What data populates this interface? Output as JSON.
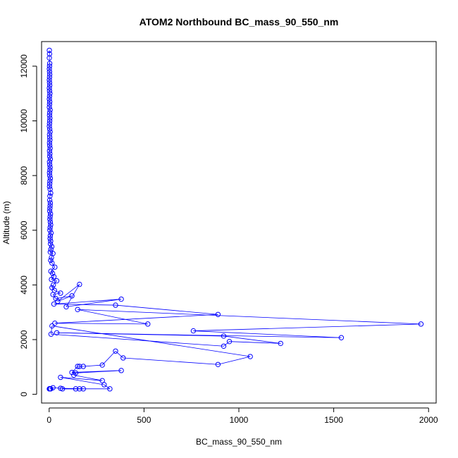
{
  "chart_data": {
    "type": "line",
    "title": "ATOM2 Northbound BC_mass_90_550_nm",
    "xlabel": "BC_mass_90_550_nm",
    "ylabel": "Altitude (m)",
    "xlim": [
      -40,
      2040
    ],
    "ylim": [
      -320,
      12900
    ],
    "x_ticks": [
      0,
      500,
      1000,
      1500,
      2000
    ],
    "y_ticks": [
      0,
      2000,
      4000,
      6000,
      8000,
      10000,
      12000
    ],
    "grid": false,
    "legend": "none",
    "series_color": "#0000ff",
    "marker": "open-circle",
    "series": [
      {
        "x": [
          1,
          2,
          1,
          3,
          2,
          1,
          2,
          3,
          2,
          1,
          2,
          3,
          1,
          2,
          4,
          2,
          1,
          3,
          2,
          1,
          5,
          3,
          2,
          4,
          3,
          2,
          1,
          3,
          5,
          2,
          3,
          4,
          2,
          3,
          5,
          2,
          4,
          3,
          6,
          2,
          3,
          5,
          4,
          2,
          3,
          6,
          4,
          3,
          2,
          5,
          8,
          4,
          3,
          6,
          5,
          4,
          3,
          7,
          5,
          4,
          6,
          8,
          5,
          4,
          10,
          6,
          5,
          8,
          7,
          14,
          9,
          6,
          20,
          12,
          8,
          15,
          30,
          9,
          18,
          25,
          12,
          40,
          22,
          15,
          28,
          60,
          20,
          35,
          120,
          45,
          160,
          90,
          380,
          25,
          350,
          890,
          30,
          520,
          150,
          1960,
          760,
          1540,
          40,
          920,
          1220,
          950,
          920,
          10,
          15,
          1060,
          890,
          390,
          350,
          280,
          180,
          160,
          150,
          120,
          380,
          140,
          130,
          280,
          60,
          290,
          320,
          160,
          140,
          70,
          180,
          60,
          20,
          8,
          5,
          3,
          2,
          1
        ],
        "y": [
          12580,
          12450,
          12300,
          12100,
          12000,
          11900,
          11800,
          11700,
          11600,
          11500,
          11400,
          11300,
          11200,
          11100,
          11000,
          10900,
          10800,
          10700,
          10600,
          10500,
          10400,
          10300,
          10200,
          10100,
          10000,
          9900,
          9800,
          9700,
          9600,
          9500,
          9400,
          9300,
          9200,
          9100,
          9000,
          8900,
          8800,
          8700,
          8600,
          8500,
          8400,
          8300,
          8200,
          8100,
          8000,
          7900,
          7800,
          7700,
          7600,
          7500,
          7360,
          7250,
          7100,
          7000,
          6900,
          6800,
          6700,
          6600,
          6500,
          6400,
          6300,
          6200,
          6100,
          6000,
          5900,
          5800,
          5700,
          5600,
          5500,
          5400,
          5300,
          5200,
          5150,
          5000,
          4900,
          4800,
          4650,
          4500,
          4420,
          4300,
          4200,
          4150,
          4000,
          3900,
          3800,
          3700,
          3650,
          3500,
          3600,
          3400,
          4020,
          3200,
          3480,
          3300,
          3260,
          2920,
          2600,
          2570,
          3100,
          2570,
          2320,
          2070,
          2250,
          2130,
          1860,
          1930,
          1760,
          2200,
          2500,
          1380,
          1090,
          1330,
          1580,
          1070,
          1020,
          1020,
          1020,
          800,
          870,
          780,
          700,
          500,
          620,
          350,
          200,
          200,
          200,
          200,
          200,
          220,
          240,
          200,
          200,
          200,
          200,
          200
        ]
      }
    ]
  }
}
